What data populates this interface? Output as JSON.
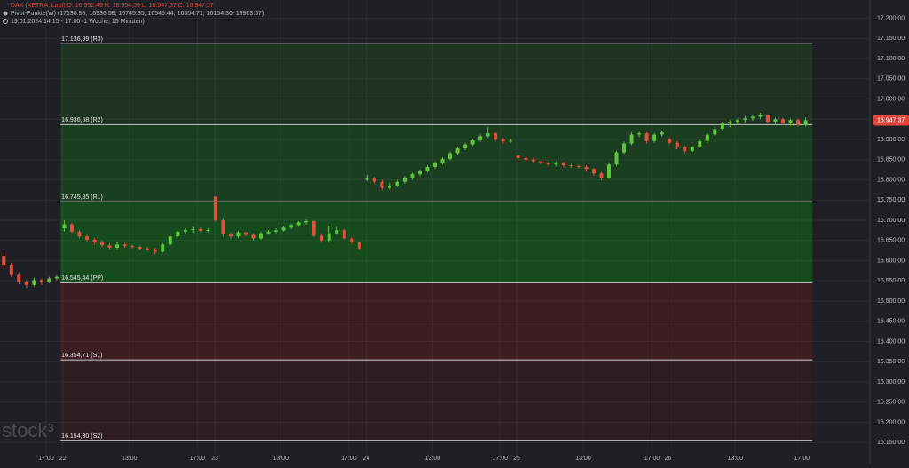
{
  "header": {
    "symbol_line": "DAX (XETRA, Last)  O: 16.952,49  H: 16.954,59  L: 16.947,37  C: 16.947,37",
    "indicator_line": "Pivot-Punkte(W)  (17136.99,  16936.58,  16745.85,  16545.44,  16354.71,  16154.30,  15963.57)",
    "period_line": "19.01.2024 14:15 - 17:00  (1 Woche, 15 Minuten)"
  },
  "watermark": "stock³",
  "chart_data": {
    "type": "candlestick",
    "ohlc": [
      [
        16612,
        16620,
        16580,
        16590
      ],
      [
        16590,
        16595,
        16560,
        16565
      ],
      [
        16565,
        16570,
        16542,
        16548
      ],
      [
        16548,
        16552,
        16532,
        16540
      ],
      [
        16540,
        16558,
        16536,
        16552
      ],
      [
        16552,
        16556,
        16540,
        16547
      ],
      [
        16547,
        16560,
        16544,
        16556
      ],
      [
        16556,
        16564,
        16552,
        16560
      ],
      [
        16680,
        16700,
        16672,
        16690
      ],
      [
        16690,
        16694,
        16668,
        16672
      ],
      [
        16672,
        16676,
        16656,
        16660
      ],
      [
        16660,
        16664,
        16648,
        16652
      ],
      [
        16652,
        16656,
        16640,
        16645
      ],
      [
        16645,
        16650,
        16634,
        16638
      ],
      [
        16638,
        16642,
        16628,
        16632
      ],
      [
        16632,
        16646,
        16628,
        16640
      ],
      [
        16640,
        16644,
        16632,
        16636
      ],
      [
        16636,
        16640,
        16630,
        16634
      ],
      [
        16634,
        16638,
        16626,
        16630
      ],
      [
        16630,
        16634,
        16624,
        16628
      ],
      [
        16628,
        16632,
        16616,
        16622
      ],
      [
        16622,
        16644,
        16620,
        16640
      ],
      [
        16640,
        16664,
        16636,
        16660
      ],
      [
        16660,
        16676,
        16656,
        16672
      ],
      [
        16672,
        16680,
        16668,
        16676
      ],
      [
        16676,
        16684,
        16670,
        16678
      ],
      [
        16678,
        16682,
        16670,
        16674
      ],
      [
        16674,
        16680,
        16670,
        16676
      ],
      [
        16758,
        16760,
        16696,
        16700
      ],
      [
        16700,
        16704,
        16660,
        16665
      ],
      [
        16665,
        16670,
        16655,
        16660
      ],
      [
        16660,
        16674,
        16656,
        16670
      ],
      [
        16670,
        16672,
        16660,
        16664
      ],
      [
        16664,
        16668,
        16650,
        16655
      ],
      [
        16655,
        16672,
        16652,
        16668
      ],
      [
        16668,
        16676,
        16664,
        16672
      ],
      [
        16672,
        16680,
        16668,
        16675
      ],
      [
        16675,
        16686,
        16672,
        16682
      ],
      [
        16682,
        16692,
        16678,
        16688
      ],
      [
        16688,
        16698,
        16684,
        16695
      ],
      [
        16695,
        16702,
        16690,
        16698
      ],
      [
        16698,
        16700,
        16658,
        16662
      ],
      [
        16662,
        16666,
        16646,
        16650
      ],
      [
        16650,
        16686,
        16646,
        16668
      ],
      [
        16668,
        16684,
        16664,
        16676
      ],
      [
        16676,
        16680,
        16652,
        16655
      ],
      [
        16655,
        16660,
        16640,
        16645
      ],
      [
        16645,
        16648,
        16626,
        16630
      ],
      [
        16800,
        16812,
        16796,
        16805
      ],
      [
        16805,
        16808,
        16790,
        16795
      ],
      [
        16795,
        16800,
        16774,
        16780
      ],
      [
        16780,
        16792,
        16776,
        16785
      ],
      [
        16785,
        16800,
        16782,
        16795
      ],
      [
        16795,
        16810,
        16790,
        16805
      ],
      [
        16805,
        16818,
        16800,
        16814
      ],
      [
        16814,
        16826,
        16810,
        16822
      ],
      [
        16822,
        16836,
        16818,
        16832
      ],
      [
        16832,
        16846,
        16828,
        16842
      ],
      [
        16842,
        16856,
        16838,
        16852
      ],
      [
        16852,
        16870,
        16848,
        16866
      ],
      [
        16866,
        16882,
        16862,
        16878
      ],
      [
        16878,
        16892,
        16874,
        16888
      ],
      [
        16888,
        16902,
        16884,
        16898
      ],
      [
        16898,
        16912,
        16894,
        16908
      ],
      [
        16908,
        16930,
        16904,
        16915
      ],
      [
        16915,
        16918,
        16896,
        16900
      ],
      [
        16900,
        16904,
        16890,
        16895
      ],
      [
        16895,
        16902,
        16892,
        16897
      ],
      [
        16860,
        16862,
        16848,
        16854
      ],
      [
        16854,
        16858,
        16846,
        16850
      ],
      [
        16850,
        16854,
        16842,
        16846
      ],
      [
        16846,
        16850,
        16838,
        16843
      ],
      [
        16843,
        16846,
        16834,
        16838
      ],
      [
        16838,
        16846,
        16834,
        16842
      ],
      [
        16842,
        16845,
        16832,
        16836
      ],
      [
        16836,
        16840,
        16830,
        16834
      ],
      [
        16834,
        16838,
        16828,
        16832
      ],
      [
        16832,
        16836,
        16822,
        16827
      ],
      [
        16827,
        16830,
        16810,
        16816
      ],
      [
        16816,
        16820,
        16798,
        16805
      ],
      [
        16805,
        16842,
        16802,
        16838
      ],
      [
        16838,
        16872,
        16834,
        16868
      ],
      [
        16868,
        16895,
        16864,
        16890
      ],
      [
        16890,
        16918,
        16886,
        16912
      ],
      [
        16912,
        16920,
        16906,
        16915
      ],
      [
        16915,
        16918,
        16890,
        16896
      ],
      [
        16896,
        16916,
        16892,
        16912
      ],
      [
        16912,
        16922,
        16908,
        16918
      ],
      [
        16900,
        16904,
        16888,
        16892
      ],
      [
        16892,
        16896,
        16876,
        16882
      ],
      [
        16882,
        16886,
        16866,
        16871
      ],
      [
        16871,
        16886,
        16868,
        16882
      ],
      [
        16882,
        16900,
        16878,
        16896
      ],
      [
        16896,
        16916,
        16892,
        16912
      ],
      [
        16912,
        16930,
        16908,
        16926
      ],
      [
        16926,
        16944,
        16922,
        16940
      ],
      [
        16940,
        16948,
        16930,
        16944
      ],
      [
        16944,
        16952,
        16936,
        16948
      ],
      [
        16948,
        16958,
        16942,
        16952
      ],
      [
        16952,
        16962,
        16946,
        16956
      ],
      [
        16956,
        16966,
        16950,
        16960
      ],
      [
        16960,
        16962,
        16940,
        16944
      ],
      [
        16944,
        16954,
        16938,
        16950
      ],
      [
        16950,
        16954,
        16936,
        16940
      ],
      [
        16940,
        16952,
        16934,
        16948
      ],
      [
        16948,
        16952,
        16932,
        16936
      ],
      [
        16936,
        16954,
        16932,
        16947.37
      ]
    ],
    "xlim": [
      -0.5,
      114.5
    ],
    "xticks": [
      {
        "value": 5.6,
        "label": "17:00"
      },
      {
        "value": 7.8,
        "label": "22"
      },
      {
        "value": 16.6,
        "label": "13:00"
      },
      {
        "value": 25.6,
        "label": "17:00"
      },
      {
        "value": 27.9,
        "label": "23"
      },
      {
        "value": 36.6,
        "label": "13:00"
      },
      {
        "value": 45.6,
        "label": "17:00"
      },
      {
        "value": 47.9,
        "label": "24"
      },
      {
        "value": 56.7,
        "label": "13:00"
      },
      {
        "value": 65.6,
        "label": "17:00"
      },
      {
        "value": 67.8,
        "label": "25"
      },
      {
        "value": 76.6,
        "label": "13:00"
      },
      {
        "value": 85.7,
        "label": "17:00"
      },
      {
        "value": 87.8,
        "label": "26"
      },
      {
        "value": 96.7,
        "label": "13:00"
      },
      {
        "value": 105.5,
        "label": "17:00"
      }
    ],
    "ylim": [
      16098,
      17245
    ],
    "yticks": [
      {
        "value": 16150,
        "label": "16.150,00"
      },
      {
        "value": 16200,
        "label": "16.200,00"
      },
      {
        "value": 16250,
        "label": "16.250,00"
      },
      {
        "value": 16300,
        "label": "16.300,00"
      },
      {
        "value": 16350,
        "label": "16.350,00"
      },
      {
        "value": 16400,
        "label": "16.400,00"
      },
      {
        "value": 16450,
        "label": "16.450,00"
      },
      {
        "value": 16500,
        "label": "16.500,00"
      },
      {
        "value": 16550,
        "label": "16.550,00"
      },
      {
        "value": 16600,
        "label": "16.600,00"
      },
      {
        "value": 16650,
        "label": "16.650,00"
      },
      {
        "value": 16700,
        "label": "16.700,00"
      },
      {
        "value": 16750,
        "label": "16.750,00"
      },
      {
        "value": 16800,
        "label": "16.800,00"
      },
      {
        "value": 16850,
        "label": "16.850,00"
      },
      {
        "value": 16900,
        "label": "16.900,00"
      },
      {
        "value": 16950,
        "label": "16.950,00"
      },
      {
        "value": 17000,
        "label": "17.000,00"
      },
      {
        "value": 17050,
        "label": "17.050,00"
      },
      {
        "value": 17100,
        "label": "17.100,00"
      },
      {
        "value": 17150,
        "label": "17.150,00"
      },
      {
        "value": 17200,
        "label": "17.200,00"
      }
    ],
    "pivots": [
      {
        "value": 17136.99,
        "label": "17.136,99 (R3)",
        "color": "#1f3323"
      },
      {
        "value": 16936.58,
        "label": "16.936,58 (R2)",
        "color": "#1b3d20"
      },
      {
        "value": 16745.85,
        "label": "16.745,85 (R1)",
        "color": "#154b1d"
      },
      {
        "value": 16545.44,
        "label": "16.545,44 (PP)",
        "color": "#3c1d22"
      },
      {
        "value": 16354.71,
        "label": "16.354,71 (S1)",
        "color": "#301d21"
      },
      {
        "value": 16154.3,
        "label": "16.154,30 (S2)"
      }
    ],
    "last_price": {
      "value": 16947.37,
      "label": "16.947,37",
      "color": "#e0453a"
    },
    "colors": {
      "up": "#5cc63a",
      "down": "#e2523b"
    },
    "grid": true
  }
}
